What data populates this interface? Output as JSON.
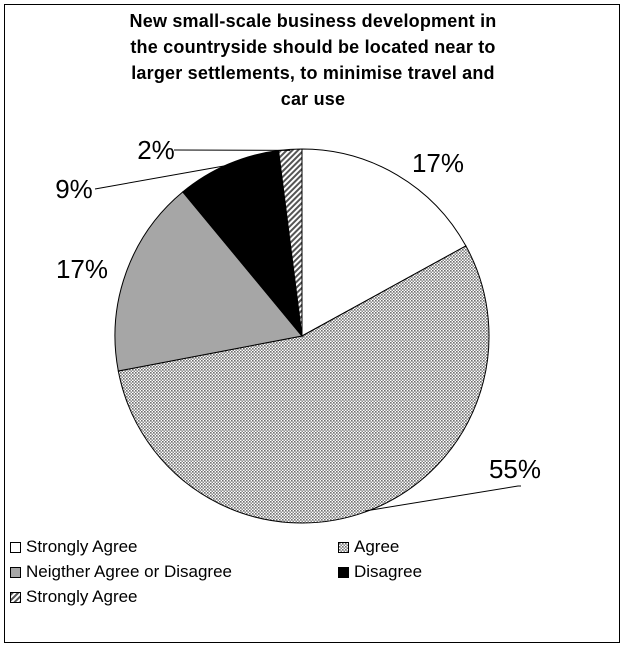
{
  "chart_data": {
    "type": "pie",
    "title": "New small-scale business development in the countryside should be located near to larger settlements, to minimise travel and car use",
    "title_lines": [
      "New small-scale business development in",
      "the countryside should be located near to",
      "larger settlements, to minimise travel and",
      "car use"
    ],
    "start_angle_deg": 0,
    "direction": "clockwise",
    "legend_position": "bottom",
    "slices": [
      {
        "label": "Strongly Agree",
        "value": 17,
        "display": "17%",
        "fill": "white"
      },
      {
        "label": "Agree",
        "value": 55,
        "display": "55%",
        "fill": "crosshatch"
      },
      {
        "label": "Neigther Agree or Disagree",
        "value": 17,
        "display": "17%",
        "fill": "#a6a6a6"
      },
      {
        "label": "Disagree",
        "value": 9,
        "display": "9%",
        "fill": "#000000"
      },
      {
        "label": "Strongly Agree",
        "value": 2,
        "display": "2%",
        "fill": "diagonal"
      }
    ]
  }
}
